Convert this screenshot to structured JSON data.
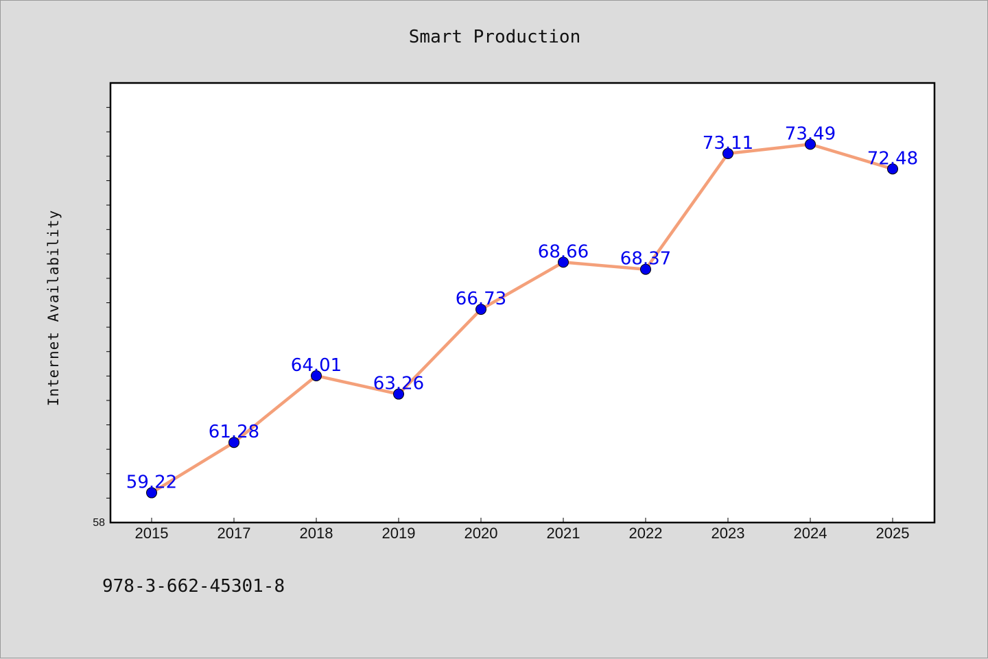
{
  "chart_data": {
    "type": "line",
    "title": "Smart Production",
    "xlabel": "",
    "ylabel": "Internet Availability",
    "categories": [
      "2015",
      "2017",
      "2018",
      "2019",
      "2020",
      "2021",
      "2022",
      "2023",
      "2024",
      "2025"
    ],
    "series": [
      {
        "values": [
          59.22,
          61.28,
          64.01,
          63.26,
          66.73,
          68.66,
          68.37,
          73.11,
          73.49,
          72.48
        ],
        "labels": [
          "59.22",
          "61.28",
          "64.01",
          "63.26",
          "66.73",
          "68.66",
          "68.37",
          "73.11",
          "73.49",
          "72.48"
        ]
      }
    ],
    "ylim": [
      58,
      76
    ],
    "yticks_labeled": [
      "58"
    ],
    "minor_tick_step": 1,
    "grid": false,
    "line_color": "#f4a07a",
    "marker_color": "#0000ee",
    "label_color": "#0000ee"
  },
  "footer": {
    "isbn": "978-3-662-45301-8"
  }
}
